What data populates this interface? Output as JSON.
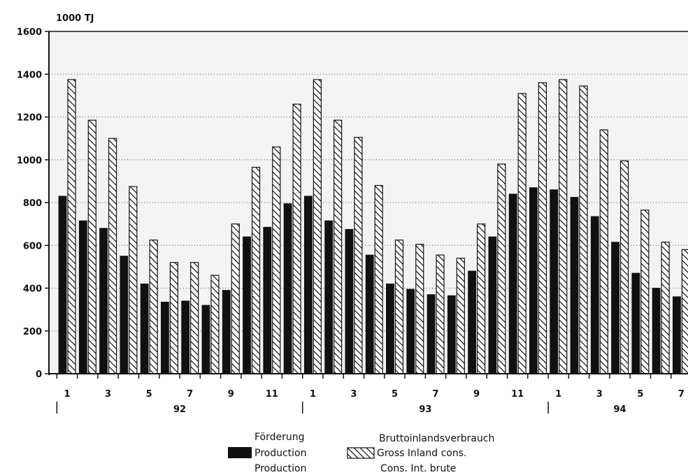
{
  "chart_data": {
    "type": "bar",
    "unit_label": "1000 TJ",
    "y_axis": {
      "min": 0,
      "max": 1600,
      "ticks": [
        "0",
        "200",
        "400",
        "600",
        "800",
        "1000",
        "1200",
        "1400",
        "1600"
      ]
    },
    "x_axis": {
      "month_labels": [
        "1",
        "3",
        "5",
        "7",
        "9",
        "11",
        "1",
        "3",
        "5",
        "7",
        "9",
        "11",
        "1",
        "3",
        "5",
        "7"
      ],
      "year_labels": [
        "92",
        "93",
        "94"
      ]
    },
    "grid": true,
    "grid_lines": [
      200,
      400,
      600,
      800,
      1000,
      1200,
      1400
    ],
    "months": [
      {
        "year": "92",
        "month": 1
      },
      {
        "year": "92",
        "month": 2
      },
      {
        "year": "92",
        "month": 3
      },
      {
        "year": "92",
        "month": 4
      },
      {
        "year": "92",
        "month": 5
      },
      {
        "year": "92",
        "month": 6
      },
      {
        "year": "92",
        "month": 7
      },
      {
        "year": "92",
        "month": 8
      },
      {
        "year": "92",
        "month": 9
      },
      {
        "year": "92",
        "month": 10
      },
      {
        "year": "92",
        "month": 11
      },
      {
        "year": "92",
        "month": 12
      },
      {
        "year": "93",
        "month": 1
      },
      {
        "year": "93",
        "month": 2
      },
      {
        "year": "93",
        "month": 3
      },
      {
        "year": "93",
        "month": 4
      },
      {
        "year": "93",
        "month": 5
      },
      {
        "year": "93",
        "month": 6
      },
      {
        "year": "93",
        "month": 7
      },
      {
        "year": "93",
        "month": 8
      },
      {
        "year": "93",
        "month": 9
      },
      {
        "year": "93",
        "month": 10
      },
      {
        "year": "93",
        "month": 11
      },
      {
        "year": "93",
        "month": 12
      },
      {
        "year": "94",
        "month": 1
      },
      {
        "year": "94",
        "month": 2
      },
      {
        "year": "94",
        "month": 3
      },
      {
        "year": "94",
        "month": 4
      },
      {
        "year": "94",
        "month": 5
      },
      {
        "year": "94",
        "month": 6
      },
      {
        "year": "94",
        "month": 7
      }
    ],
    "series": [
      {
        "name": "Förderung / Production / Production",
        "legend_lines": [
          "Förderung",
          "Production",
          "Production"
        ],
        "style": "solid",
        "color": "#111111",
        "values": [
          830,
          715,
          680,
          550,
          420,
          335,
          340,
          320,
          390,
          640,
          685,
          795,
          830,
          715,
          675,
          555,
          420,
          395,
          370,
          365,
          480,
          640,
          840,
          870,
          860,
          825,
          735,
          615,
          470,
          400,
          360
        ]
      },
      {
        "name": "Bruttoinlandsverbrauch / Gross inland cons. / Cons. int. brute",
        "legend_lines": [
          "Bruttoinlandsverbrauch",
          "Gross Inland cons.",
          "Cons. Int. brute"
        ],
        "style": "hatched",
        "color": "#111111",
        "values": [
          1375,
          1185,
          1100,
          875,
          625,
          520,
          520,
          460,
          700,
          965,
          1060,
          1260,
          1375,
          1185,
          1105,
          880,
          625,
          605,
          555,
          540,
          700,
          980,
          1310,
          1360,
          1375,
          1345,
          1140,
          995,
          765,
          615,
          580
        ]
      }
    ],
    "legend_placement": "bottom"
  }
}
